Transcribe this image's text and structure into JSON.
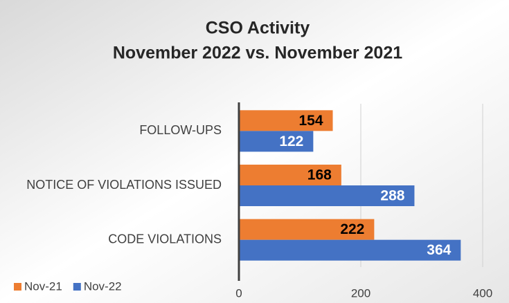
{
  "chart_data": {
    "type": "bar",
    "orientation": "horizontal",
    "title": "CSO Activity",
    "subtitle": "November 2022 vs. November 2021",
    "categories": [
      "FOLLOW-UPS",
      "NOTICE OF VIOLATIONS ISSUED",
      "CODE VIOLATIONS"
    ],
    "series": [
      {
        "name": "Nov-21",
        "color": "#ed7d31",
        "values": [
          154,
          168,
          222
        ]
      },
      {
        "name": "Nov-22",
        "color": "#4472c4",
        "values": [
          122,
          288,
          364
        ]
      }
    ],
    "xlim": [
      0,
      400
    ],
    "xticks": [
      0,
      200,
      400
    ],
    "grid": true,
    "legend": "bottom-left"
  }
}
